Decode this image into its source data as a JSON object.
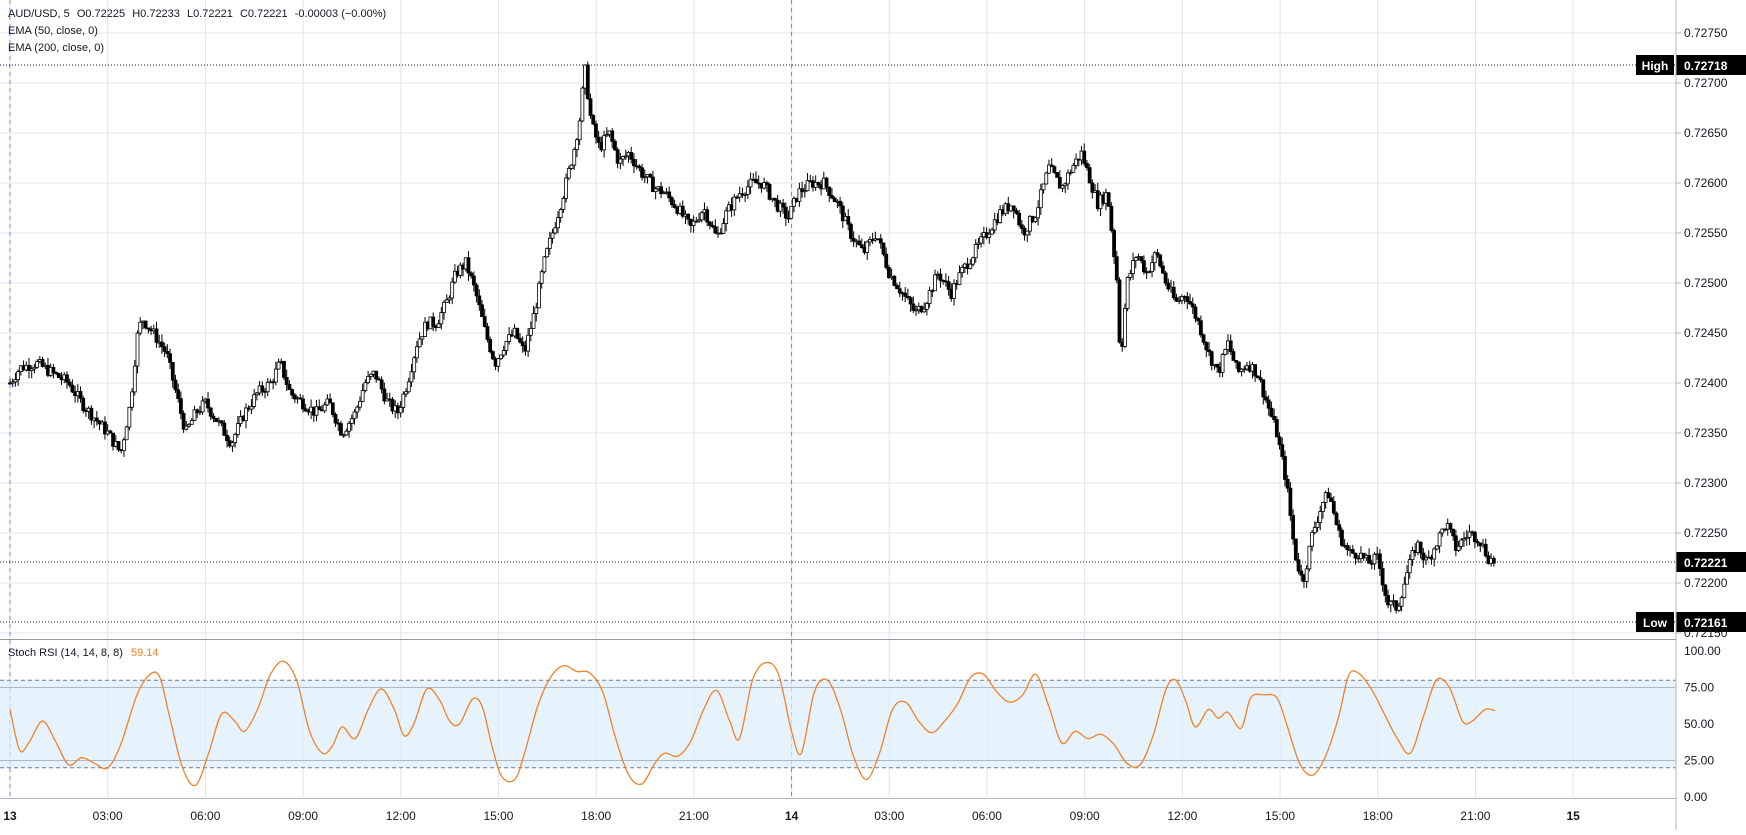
{
  "legend": {
    "symbol": "AUD/USD, 5",
    "open": "O0.72225",
    "high": "H0.72233",
    "low": "L0.72221",
    "close": "C0.72221",
    "change": "-0.00003 (−0.00%)",
    "ema50": "EMA (50, close, 0)",
    "ema200": "EMA (200, close, 0)"
  },
  "markers": {
    "high_label": "High",
    "high_value": "0.72718",
    "low_label": "Low",
    "low_value": "0.72161",
    "last_value": "0.72221"
  },
  "oscillator": {
    "label": "Stoch RSI (14, 14, 8, 8)",
    "value": "59.14",
    "line_color": "#f2812b",
    "band_color": "#dbeefb"
  },
  "colors": {
    "candle": "#000000",
    "grid": "#e0e3eb",
    "oscillator_line": "#f2812b"
  },
  "chart_data": [
    {
      "type": "candlestick",
      "title": "AUD/USD, 5",
      "price_axis": {
        "range": [
          0.72145,
          0.72775
        ],
        "ticks": [
          "0.72750",
          "0.72700",
          "0.72650",
          "0.72600",
          "0.72550",
          "0.72500",
          "0.72450",
          "0.72400",
          "0.72350",
          "0.72300",
          "0.72250",
          "0.72200",
          "0.72150"
        ]
      },
      "time_axis": {
        "range": [
          0,
          50
        ],
        "labels": [
          {
            "x": 0,
            "text": "13",
            "bold": true
          },
          {
            "x": 3,
            "text": "03:00"
          },
          {
            "x": 6,
            "text": "06:00"
          },
          {
            "x": 9,
            "text": "09:00"
          },
          {
            "x": 12,
            "text": "12:00"
          },
          {
            "x": 15,
            "text": "15:00"
          },
          {
            "x": 18,
            "text": "18:00"
          },
          {
            "x": 21,
            "text": "21:00"
          },
          {
            "x": 24,
            "text": "14",
            "bold": true
          },
          {
            "x": 27,
            "text": "03:00"
          },
          {
            "x": 30,
            "text": "06:00"
          },
          {
            "x": 33,
            "text": "09:00"
          },
          {
            "x": 36,
            "text": "12:00"
          },
          {
            "x": 39,
            "text": "15:00"
          },
          {
            "x": 42,
            "text": "18:00"
          },
          {
            "x": 45,
            "text": "21:00"
          },
          {
            "x": 48,
            "text": "15",
            "bold": true
          }
        ],
        "session_breaks": [
          0,
          24
        ]
      },
      "high": 0.72718,
      "low": 0.72161,
      "last": 0.72221,
      "price_path": [
        [
          0.0,
          0.724
        ],
        [
          0.3,
          0.72415
        ],
        [
          0.8,
          0.7242
        ],
        [
          1.3,
          0.7241
        ],
        [
          1.8,
          0.724
        ],
        [
          2.2,
          0.7238
        ],
        [
          2.6,
          0.72365
        ],
        [
          3.0,
          0.7235
        ],
        [
          3.4,
          0.7233
        ],
        [
          3.7,
          0.7238
        ],
        [
          3.9,
          0.72445
        ],
        [
          4.05,
          0.72465
        ],
        [
          4.4,
          0.7245
        ],
        [
          4.8,
          0.7243
        ],
        [
          5.1,
          0.7239
        ],
        [
          5.4,
          0.7235
        ],
        [
          5.7,
          0.7237
        ],
        [
          6.0,
          0.7238
        ],
        [
          6.4,
          0.7236
        ],
        [
          6.8,
          0.7234
        ],
        [
          7.2,
          0.7237
        ],
        [
          7.6,
          0.7239
        ],
        [
          8.0,
          0.724
        ],
        [
          8.3,
          0.7242
        ],
        [
          8.6,
          0.7239
        ],
        [
          9.0,
          0.7238
        ],
        [
          9.4,
          0.7237
        ],
        [
          9.8,
          0.7238
        ],
        [
          10.2,
          0.7235
        ],
        [
          10.6,
          0.7237
        ],
        [
          10.9,
          0.724
        ],
        [
          11.2,
          0.7241
        ],
        [
          11.6,
          0.7238
        ],
        [
          11.9,
          0.7237
        ],
        [
          12.2,
          0.724
        ],
        [
          12.5,
          0.7244
        ],
        [
          12.8,
          0.7246
        ],
        [
          13.1,
          0.7246
        ],
        [
          13.4,
          0.7248
        ],
        [
          13.7,
          0.7251
        ],
        [
          14.0,
          0.7252
        ],
        [
          14.3,
          0.7249
        ],
        [
          14.6,
          0.7245
        ],
        [
          14.9,
          0.7242
        ],
        [
          15.2,
          0.7244
        ],
        [
          15.5,
          0.7245
        ],
        [
          15.8,
          0.7243
        ],
        [
          16.1,
          0.7247
        ],
        [
          16.4,
          0.7252
        ],
        [
          16.7,
          0.72555
        ],
        [
          17.0,
          0.7259
        ],
        [
          17.3,
          0.7263
        ],
        [
          17.5,
          0.72665
        ],
        [
          17.65,
          0.72715
        ],
        [
          17.85,
          0.7266
        ],
        [
          18.1,
          0.72635
        ],
        [
          18.4,
          0.7265
        ],
        [
          18.7,
          0.7262
        ],
        [
          19.0,
          0.7263
        ],
        [
          19.4,
          0.7261
        ],
        [
          19.8,
          0.72595
        ],
        [
          20.1,
          0.7259
        ],
        [
          20.5,
          0.72575
        ],
        [
          20.9,
          0.72555
        ],
        [
          21.3,
          0.72575
        ],
        [
          21.7,
          0.72545
        ],
        [
          22.0,
          0.7257
        ],
        [
          22.4,
          0.7259
        ],
        [
          22.8,
          0.726
        ],
        [
          23.1,
          0.726
        ],
        [
          23.5,
          0.7258
        ],
        [
          23.9,
          0.72565
        ],
        [
          24.2,
          0.7259
        ],
        [
          24.6,
          0.726
        ],
        [
          25.0,
          0.726
        ],
        [
          25.4,
          0.7258
        ],
        [
          25.8,
          0.7255
        ],
        [
          26.2,
          0.7253
        ],
        [
          26.6,
          0.7255
        ],
        [
          27.0,
          0.7251
        ],
        [
          27.4,
          0.7249
        ],
        [
          27.8,
          0.7247
        ],
        [
          28.1,
          0.7248
        ],
        [
          28.5,
          0.7251
        ],
        [
          28.9,
          0.7249
        ],
        [
          29.2,
          0.7251
        ],
        [
          29.6,
          0.7253
        ],
        [
          30.0,
          0.7255
        ],
        [
          30.4,
          0.7257
        ],
        [
          30.8,
          0.7258
        ],
        [
          31.1,
          0.7255
        ],
        [
          31.5,
          0.7257
        ],
        [
          31.9,
          0.72615
        ],
        [
          32.3,
          0.72595
        ],
        [
          32.6,
          0.72615
        ],
        [
          32.9,
          0.7263
        ],
        [
          33.1,
          0.7261
        ],
        [
          33.4,
          0.7258
        ],
        [
          33.7,
          0.7259
        ],
        [
          34.0,
          0.725
        ],
        [
          34.1,
          0.7242
        ],
        [
          34.3,
          0.725
        ],
        [
          34.6,
          0.7253
        ],
        [
          34.9,
          0.7251
        ],
        [
          35.2,
          0.7253
        ],
        [
          35.5,
          0.725
        ],
        [
          35.8,
          0.7248
        ],
        [
          36.1,
          0.7249
        ],
        [
          36.5,
          0.7246
        ],
        [
          36.8,
          0.7243
        ],
        [
          37.1,
          0.7241
        ],
        [
          37.4,
          0.7244
        ],
        [
          37.7,
          0.7241
        ],
        [
          38.0,
          0.7242
        ],
        [
          38.3,
          0.7241
        ],
        [
          38.6,
          0.7238
        ],
        [
          38.9,
          0.7235
        ],
        [
          39.2,
          0.723
        ],
        [
          39.45,
          0.7223
        ],
        [
          39.7,
          0.722
        ],
        [
          40.0,
          0.7225
        ],
        [
          40.3,
          0.7228
        ],
        [
          40.5,
          0.7229
        ],
        [
          40.8,
          0.7225
        ],
        [
          41.1,
          0.7223
        ],
        [
          41.4,
          0.7223
        ],
        [
          41.7,
          0.7222
        ],
        [
          42.0,
          0.72225
        ],
        [
          42.3,
          0.7218
        ],
        [
          42.6,
          0.72175
        ],
        [
          42.9,
          0.7221
        ],
        [
          43.2,
          0.7224
        ],
        [
          43.5,
          0.7222
        ],
        [
          43.8,
          0.7224
        ],
        [
          44.1,
          0.7226
        ],
        [
          44.4,
          0.72235
        ],
        [
          44.8,
          0.7225
        ],
        [
          45.1,
          0.72245
        ],
        [
          45.4,
          0.72225
        ],
        [
          45.6,
          0.72221
        ]
      ]
    },
    {
      "type": "line",
      "title": "Stoch RSI (14, 14, 8, 8)",
      "y_range": [
        0,
        100
      ],
      "ticks": [
        "100.00",
        "75.00",
        "50.00",
        "25.00",
        "0.00"
      ],
      "band": [
        20,
        80
      ],
      "reference_lines": [
        75,
        25
      ],
      "series": [
        {
          "name": "Stoch RSI (14, 14, 8, 8)",
          "points": [
            [
              0.0,
              60
            ],
            [
              0.3,
              32
            ],
            [
              0.6,
              38
            ],
            [
              1.0,
              52
            ],
            [
              1.4,
              38
            ],
            [
              1.8,
              22
            ],
            [
              2.2,
              27
            ],
            [
              2.6,
              23
            ],
            [
              3.0,
              20
            ],
            [
              3.4,
              36
            ],
            [
              3.9,
              70
            ],
            [
              4.3,
              84
            ],
            [
              4.6,
              82
            ],
            [
              4.9,
              55
            ],
            [
              5.3,
              20
            ],
            [
              5.7,
              8
            ],
            [
              6.1,
              30
            ],
            [
              6.5,
              57
            ],
            [
              6.9,
              52
            ],
            [
              7.2,
              45
            ],
            [
              7.6,
              60
            ],
            [
              8.0,
              84
            ],
            [
              8.4,
              93
            ],
            [
              8.8,
              80
            ],
            [
              9.2,
              45
            ],
            [
              9.6,
              30
            ],
            [
              9.9,
              35
            ],
            [
              10.2,
              48
            ],
            [
              10.6,
              40
            ],
            [
              11.0,
              60
            ],
            [
              11.4,
              74
            ],
            [
              11.8,
              60
            ],
            [
              12.1,
              42
            ],
            [
              12.4,
              50
            ],
            [
              12.8,
              74
            ],
            [
              13.2,
              66
            ],
            [
              13.5,
              52
            ],
            [
              13.8,
              50
            ],
            [
              14.2,
              67
            ],
            [
              14.5,
              62
            ],
            [
              14.8,
              35
            ],
            [
              15.1,
              14
            ],
            [
              15.5,
              12
            ],
            [
              15.8,
              30
            ],
            [
              16.2,
              62
            ],
            [
              16.6,
              82
            ],
            [
              17.0,
              90
            ],
            [
              17.4,
              86
            ],
            [
              17.8,
              85
            ],
            [
              18.2,
              72
            ],
            [
              18.6,
              40
            ],
            [
              19.0,
              15
            ],
            [
              19.4,
              9
            ],
            [
              19.8,
              23
            ],
            [
              20.1,
              30
            ],
            [
              20.5,
              28
            ],
            [
              20.9,
              38
            ],
            [
              21.3,
              60
            ],
            [
              21.7,
              73
            ],
            [
              22.1,
              52
            ],
            [
              22.4,
              40
            ],
            [
              22.8,
              80
            ],
            [
              23.2,
              92
            ],
            [
              23.6,
              84
            ],
            [
              24.0,
              45
            ],
            [
              24.3,
              30
            ],
            [
              24.7,
              72
            ],
            [
              25.1,
              80
            ],
            [
              25.5,
              60
            ],
            [
              25.9,
              28
            ],
            [
              26.3,
              12
            ],
            [
              26.7,
              30
            ],
            [
              27.1,
              60
            ],
            [
              27.5,
              65
            ],
            [
              27.9,
              52
            ],
            [
              28.3,
              44
            ],
            [
              28.7,
              52
            ],
            [
              29.1,
              64
            ],
            [
              29.5,
              82
            ],
            [
              29.9,
              84
            ],
            [
              30.3,
              72
            ],
            [
              30.7,
              65
            ],
            [
              31.1,
              70
            ],
            [
              31.5,
              84
            ],
            [
              31.9,
              62
            ],
            [
              32.3,
              37
            ],
            [
              32.7,
              45
            ],
            [
              33.1,
              40
            ],
            [
              33.5,
              43
            ],
            [
              33.9,
              36
            ],
            [
              34.3,
              23
            ],
            [
              34.7,
              22
            ],
            [
              35.1,
              42
            ],
            [
              35.5,
              74
            ],
            [
              35.8,
              80
            ],
            [
              36.1,
              66
            ],
            [
              36.4,
              48
            ],
            [
              36.8,
              60
            ],
            [
              37.1,
              54
            ],
            [
              37.4,
              58
            ],
            [
              37.8,
              47
            ],
            [
              38.1,
              68
            ],
            [
              38.5,
              70
            ],
            [
              38.9,
              68
            ],
            [
              39.2,
              50
            ],
            [
              39.6,
              23
            ],
            [
              40.0,
              15
            ],
            [
              40.4,
              28
            ],
            [
              40.8,
              55
            ],
            [
              41.1,
              83
            ],
            [
              41.4,
              85
            ],
            [
              41.8,
              74
            ],
            [
              42.2,
              57
            ],
            [
              42.6,
              40
            ],
            [
              43.0,
              30
            ],
            [
              43.4,
              55
            ],
            [
              43.8,
              80
            ],
            [
              44.2,
              75
            ],
            [
              44.6,
              52
            ],
            [
              44.9,
              52
            ],
            [
              45.3,
              60
            ],
            [
              45.6,
              59.14
            ]
          ]
        }
      ]
    }
  ]
}
